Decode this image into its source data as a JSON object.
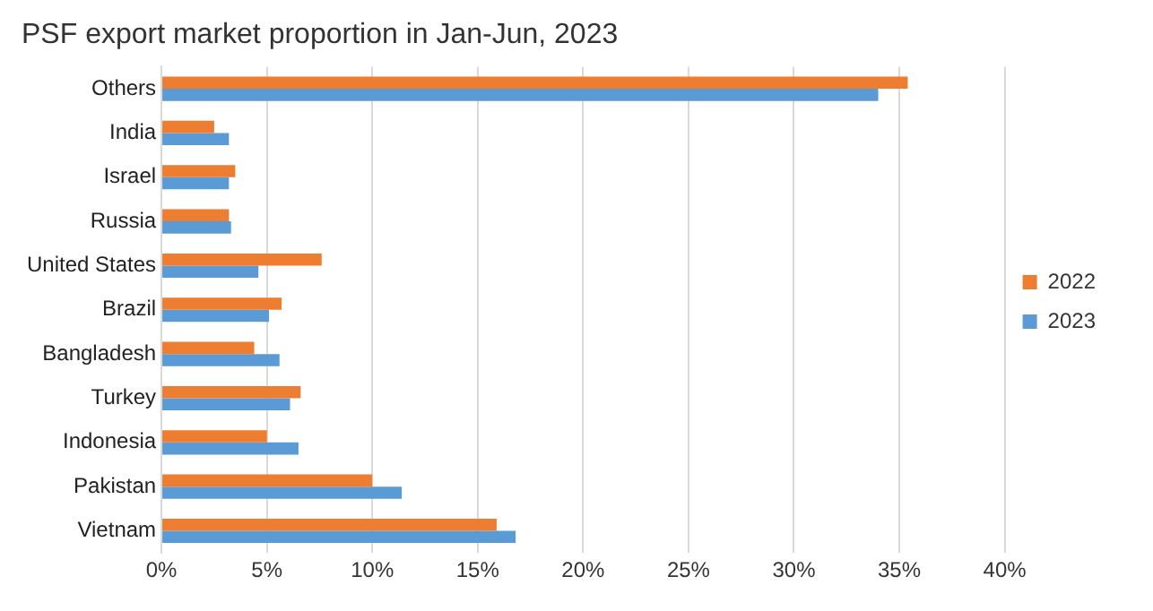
{
  "chart_data": {
    "type": "bar",
    "orientation": "horizontal",
    "title": "PSF export market proportion in Jan-Jun, 2023",
    "categories": [
      "Others",
      "India",
      "Israel",
      "Russia",
      "United States",
      "Brazil",
      "Bangladesh",
      "Turkey",
      "Indonesia",
      "Pakistan",
      "Vietnam"
    ],
    "series": [
      {
        "name": "2022",
        "color": "#ed7d31",
        "values": [
          35.4,
          2.5,
          3.5,
          3.2,
          7.6,
          5.7,
          4.4,
          6.6,
          5.0,
          10.0,
          15.9
        ]
      },
      {
        "name": "2023",
        "color": "#5b9bd5",
        "values": [
          34.0,
          3.2,
          3.2,
          3.3,
          4.6,
          5.1,
          5.6,
          6.1,
          6.5,
          11.4,
          16.8
        ]
      }
    ],
    "xlim": [
      0,
      40
    ],
    "xticks": [
      {
        "value": 0,
        "label": "0%"
      },
      {
        "value": 5,
        "label": "5%"
      },
      {
        "value": 10,
        "label": "10%"
      },
      {
        "value": 15,
        "label": "15%"
      },
      {
        "value": 20,
        "label": "20%"
      },
      {
        "value": 25,
        "label": "25%"
      },
      {
        "value": 30,
        "label": "30%"
      },
      {
        "value": 35,
        "label": "35%"
      },
      {
        "value": 40,
        "label": "40%"
      }
    ],
    "grid": "x",
    "legend": "right"
  }
}
